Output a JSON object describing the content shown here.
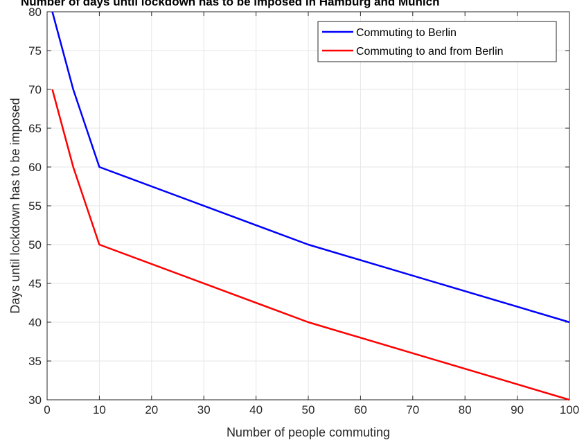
{
  "chart_data": {
    "type": "line",
    "title": "Number of days until lockdown has to be imposed in Hamburg and Munich",
    "xlabel": "Number of people commuting",
    "ylabel": "Days until lockdown has to be imposed",
    "xlim": [
      0,
      100
    ],
    "ylim": [
      30,
      80
    ],
    "xticks": [
      0,
      10,
      20,
      30,
      40,
      50,
      60,
      70,
      80,
      90,
      100
    ],
    "yticks": [
      30,
      35,
      40,
      45,
      50,
      55,
      60,
      65,
      70,
      75,
      80
    ],
    "grid": true,
    "legend_position": "top-right",
    "series": [
      {
        "name": "Commuting to Berlin",
        "color": "#0000ff",
        "x": [
          1,
          5,
          10,
          50,
          100
        ],
        "y": [
          80,
          70,
          60,
          50,
          40
        ]
      },
      {
        "name": "Commuting to and from Berlin",
        "color": "#ff0000",
        "x": [
          1,
          5,
          10,
          50,
          100
        ],
        "y": [
          70,
          60,
          50,
          40,
          30
        ]
      }
    ]
  }
}
